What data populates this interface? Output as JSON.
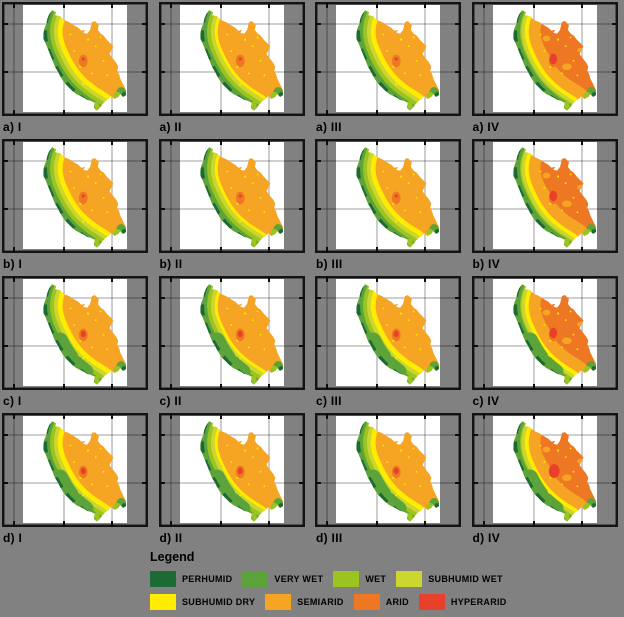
{
  "colors": {
    "background": "#818181",
    "panel_border": "#141414",
    "perhumid": "#1c6b35",
    "very_wet": "#5ba33a",
    "wet": "#9cc421",
    "subhumid_wet": "#ccd62f",
    "subhumid_dry": "#ffec00",
    "semiarid": "#f5a423",
    "arid": "#ed7722",
    "hyperarid": "#e8402a"
  },
  "panels": [
    {
      "label": "a) I",
      "row": "a",
      "col": "I"
    },
    {
      "label": "a) II",
      "row": "a",
      "col": "II"
    },
    {
      "label": "a) III",
      "row": "a",
      "col": "III"
    },
    {
      "label": "a) IV",
      "row": "a",
      "col": "IV"
    },
    {
      "label": "b) I",
      "row": "b",
      "col": "I"
    },
    {
      "label": "b) II",
      "row": "b",
      "col": "II"
    },
    {
      "label": "b) III",
      "row": "b",
      "col": "III"
    },
    {
      "label": "b) IV",
      "row": "b",
      "col": "IV"
    },
    {
      "label": "c) I",
      "row": "c",
      "col": "I"
    },
    {
      "label": "c) II",
      "row": "c",
      "col": "II"
    },
    {
      "label": "c) III",
      "row": "c",
      "col": "III"
    },
    {
      "label": "c) IV",
      "row": "c",
      "col": "IV"
    },
    {
      "label": "d) I",
      "row": "d",
      "col": "I"
    },
    {
      "label": "d) II",
      "row": "d",
      "col": "II"
    },
    {
      "label": "d) III",
      "row": "d",
      "col": "III"
    },
    {
      "label": "d) IV",
      "row": "d",
      "col": "IV"
    }
  ],
  "legend": {
    "title": "Legend",
    "rows": [
      [
        {
          "label": "PERHUMID",
          "color_key": "perhumid"
        },
        {
          "label": "VERY WET",
          "color_key": "very_wet"
        },
        {
          "label": "WET",
          "color_key": "wet"
        },
        {
          "label": "SUBHUMID WET",
          "color_key": "subhumid_wet"
        }
      ],
      [
        {
          "label": "SUBHUMID DRY",
          "color_key": "subhumid_dry"
        },
        {
          "label": "SEMIARID",
          "color_key": "semiarid"
        },
        {
          "label": "ARID",
          "color_key": "arid"
        },
        {
          "label": "HYPERARID",
          "color_key": "hyperarid"
        }
      ]
    ]
  }
}
